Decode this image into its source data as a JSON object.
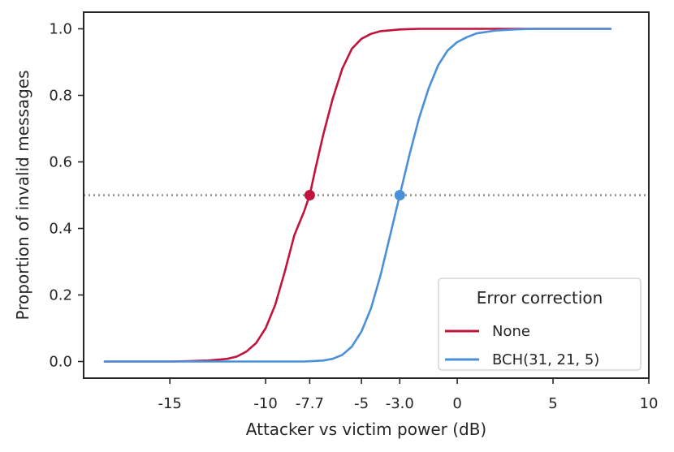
{
  "chart_data": {
    "type": "line",
    "xlabel": "Attacker vs victim power (dB)",
    "ylabel": "Proportion of invalid messages",
    "xlim": [
      -19.5,
      10
    ],
    "ylim": [
      -0.05,
      1.05
    ],
    "x_ticks": [
      {
        "value": -15,
        "label": "-15"
      },
      {
        "value": -10,
        "label": "-10"
      },
      {
        "value": -7.7,
        "label": "-7.7"
      },
      {
        "value": -5,
        "label": "-5"
      },
      {
        "value": -3.0,
        "label": "-3.0"
      },
      {
        "value": 0,
        "label": "0"
      },
      {
        "value": 5,
        "label": "5"
      },
      {
        "value": 10,
        "label": "10"
      }
    ],
    "y_ticks": [
      {
        "value": 0.0,
        "label": "0.0"
      },
      {
        "value": 0.2,
        "label": "0.2"
      },
      {
        "value": 0.4,
        "label": "0.4"
      },
      {
        "value": 0.6,
        "label": "0.6"
      },
      {
        "value": 0.8,
        "label": "0.8"
      },
      {
        "value": 1.0,
        "label": "1.0"
      }
    ],
    "grid": false,
    "reference_line": {
      "y": 0.5,
      "style": "dotted",
      "color": "#808080"
    },
    "legend": {
      "title": "Error correction",
      "placement": "lower-right"
    },
    "series": [
      {
        "name": "None",
        "color": "#C0143C",
        "x": [
          -18.4,
          -17,
          -16,
          -15,
          -14,
          -13,
          -12,
          -11.5,
          -11,
          -10.5,
          -10,
          -9.5,
          -9,
          -8.5,
          -8,
          -7.7,
          -7.4,
          -7,
          -6.5,
          -6,
          -5.5,
          -5,
          -4.5,
          -4,
          -3,
          -2,
          -1,
          0,
          2,
          4,
          6,
          8
        ],
        "y": [
          0.0,
          0.0,
          0.0,
          0.0,
          0.001,
          0.003,
          0.008,
          0.015,
          0.03,
          0.055,
          0.1,
          0.17,
          0.27,
          0.38,
          0.45,
          0.5,
          0.58,
          0.68,
          0.79,
          0.88,
          0.94,
          0.97,
          0.985,
          0.993,
          0.998,
          1.0,
          1.0,
          1.0,
          1.0,
          1.0,
          1.0,
          1.0
        ]
      },
      {
        "name": "BCH(31, 21, 5)",
        "color": "#4A90D9",
        "x": [
          -18.4,
          -15,
          -12,
          -10,
          -8,
          -7,
          -6.5,
          -6,
          -5.5,
          -5,
          -4.5,
          -4,
          -3.5,
          -3.0,
          -2.5,
          -2,
          -1.5,
          -1,
          -0.5,
          0,
          0.5,
          1,
          2,
          3,
          4,
          5,
          6,
          8
        ],
        "y": [
          0.0,
          0.0,
          0.0,
          0.0,
          0.0,
          0.003,
          0.008,
          0.02,
          0.045,
          0.09,
          0.16,
          0.26,
          0.38,
          0.5,
          0.62,
          0.73,
          0.82,
          0.89,
          0.935,
          0.96,
          0.975,
          0.986,
          0.995,
          0.998,
          1.0,
          1.0,
          1.0,
          1.0
        ]
      }
    ],
    "markers": [
      {
        "series": "None",
        "x": -7.7,
        "y": 0.5,
        "color": "#C0143C"
      },
      {
        "series": "BCH(31, 21, 5)",
        "x": -3.0,
        "y": 0.5,
        "color": "#4A90D9"
      }
    ]
  }
}
